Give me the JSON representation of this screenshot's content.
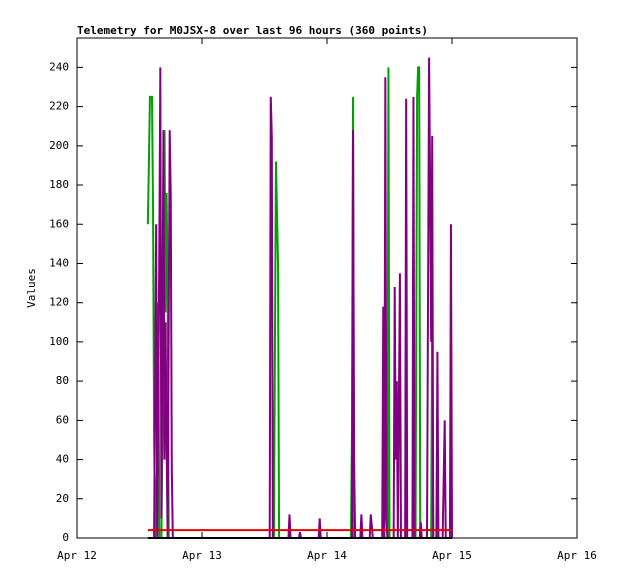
{
  "chart_data": {
    "type": "line",
    "title": "Telemetry for M0JSX-8 over last 96 hours (360 points)",
    "y_label": "Values",
    "xlim": [
      0,
      96
    ],
    "xticks": [
      {
        "value": 0,
        "label": "Apr 12"
      },
      {
        "value": 24,
        "label": "Apr 13"
      },
      {
        "value": 48,
        "label": "Apr 14"
      },
      {
        "value": 72,
        "label": "Apr 15"
      },
      {
        "value": 96,
        "label": "Apr 16"
      }
    ],
    "ylim": [
      0,
      255
    ],
    "yticks": [
      0,
      20,
      40,
      60,
      80,
      100,
      120,
      140,
      160,
      180,
      200,
      220,
      240
    ],
    "series": [
      {
        "color": "#00a000",
        "x": [
          13.6,
          13.8,
          14.0,
          14.4,
          14.6,
          14.8,
          15.0,
          15.4,
          15.6,
          15.8,
          16.2,
          16.6,
          16.8,
          17.0,
          17.2,
          17.4,
          17.6,
          18.0,
          19.0,
          37.8,
          38.2,
          38.6,
          38.8,
          52.6,
          52.8,
          53.0,
          53.2,
          59.6,
          59.8,
          60.0,
          65.0,
          65.3,
          65.5,
          65.7,
          65.9,
          68.0,
          68.2,
          68.4,
          72.0
        ],
        "values": [
          160,
          190,
          225,
          225,
          168,
          55,
          0,
          40,
          120,
          0,
          0,
          100,
          208,
          115,
          176,
          130,
          0,
          0,
          0,
          0,
          192,
          140,
          0,
          0,
          55,
          225,
          0,
          0,
          240,
          0,
          0,
          225,
          240,
          240,
          0,
          0,
          120,
          0,
          0
        ]
      },
      {
        "color": "#800080",
        "x": [
          14.8,
          15.2,
          15.4,
          15.8,
          16.0,
          16.2,
          16.6,
          16.8,
          17.0,
          17.2,
          17.4,
          17.8,
          18.0,
          18.2,
          18.4,
          37.0,
          37.2,
          37.4,
          37.6,
          40.6,
          40.8,
          41.0,
          42.6,
          42.8,
          43.0,
          46.4,
          46.6,
          46.8,
          52.8,
          53.0,
          53.2,
          53.4,
          54.4,
          54.6,
          54.8,
          56.2,
          56.4,
          56.8,
          58.6,
          58.8,
          59.0,
          59.2,
          59.4,
          59.6,
          60.8,
          61.0,
          61.2,
          61.4,
          61.6,
          62.0,
          62.2,
          63.0,
          63.2,
          63.4,
          64.4,
          64.6,
          64.8,
          65.8,
          66.0,
          66.2,
          67.2,
          67.6,
          67.8,
          68.0,
          68.2,
          68.4,
          69.0,
          69.2,
          69.4,
          70.2,
          70.6,
          70.8,
          71.6,
          71.8,
          72.0
        ],
        "values": [
          0,
          160,
          0,
          145,
          240,
          10,
          208,
          40,
          110,
          50,
          0,
          208,
          175,
          35,
          0,
          0,
          225,
          205,
          0,
          0,
          12,
          0,
          0,
          3,
          0,
          0,
          10,
          0,
          0,
          208,
          40,
          0,
          0,
          12,
          0,
          0,
          12,
          0,
          0,
          118,
          0,
          235,
          10,
          0,
          0,
          128,
          40,
          80,
          0,
          135,
          0,
          0,
          224,
          0,
          0,
          225,
          0,
          0,
          8,
          0,
          0,
          245,
          180,
          100,
          205,
          0,
          0,
          95,
          0,
          0,
          60,
          0,
          0,
          160,
          0
        ]
      },
      {
        "color": "#e00000",
        "x": [
          13.6,
          72.0
        ],
        "values": [
          4,
          4
        ]
      },
      {
        "color": "#000000",
        "x": [
          13.6,
          72.0
        ],
        "values": [
          0,
          0
        ]
      }
    ]
  }
}
